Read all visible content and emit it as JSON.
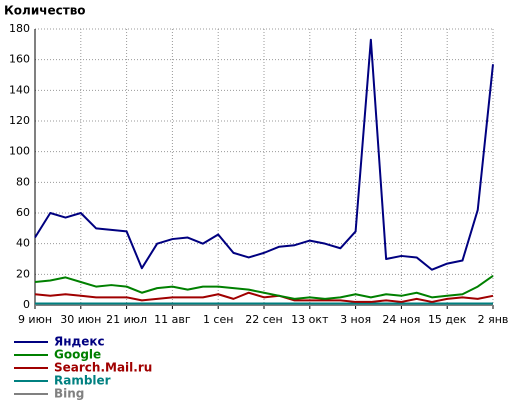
{
  "chart_data": {
    "type": "line",
    "title": "Количество",
    "categories": [
      "9 июн",
      null,
      null,
      "30 июн",
      null,
      null,
      "21 июл",
      null,
      null,
      "11 авг",
      null,
      null,
      "1 сен",
      null,
      null,
      "22 сен",
      null,
      null,
      "13 окт",
      null,
      null,
      "3 ноя",
      null,
      null,
      "24 ноя",
      null,
      null,
      "15 дек",
      null,
      null,
      "2 янв"
    ],
    "series": [
      {
        "name": "Яндекс",
        "color": "#000080",
        "values": [
          44,
          60,
          57,
          60,
          50,
          49,
          48,
          24,
          40,
          43,
          44,
          40,
          46,
          34,
          31,
          34,
          38,
          39,
          42,
          40,
          37,
          48,
          173,
          30,
          32,
          31,
          23,
          27,
          29,
          62,
          157
        ]
      },
      {
        "name": "Google",
        "color": "#008000",
        "values": [
          15,
          16,
          18,
          15,
          12,
          13,
          12,
          8,
          11,
          12,
          10,
          12,
          12,
          11,
          10,
          8,
          6,
          4,
          5,
          4,
          5,
          7,
          5,
          7,
          6,
          8,
          5,
          6,
          7,
          12,
          19
        ]
      },
      {
        "name": "Search.Mail.ru",
        "color": "#a00000",
        "values": [
          7,
          6,
          7,
          6,
          5,
          5,
          5,
          3,
          4,
          5,
          5,
          5,
          7,
          4,
          8,
          5,
          6,
          3,
          3,
          3,
          3,
          2,
          2,
          3,
          2,
          4,
          2,
          4,
          5,
          4,
          6
        ]
      },
      {
        "name": "Rambler",
        "color": "#008080",
        "values": [
          1,
          1,
          1,
          1,
          1,
          1,
          1,
          1,
          1,
          1,
          1,
          1,
          1,
          1,
          1,
          1,
          1,
          1,
          1,
          1,
          1,
          1,
          1,
          1,
          1,
          1,
          1,
          1,
          1,
          1,
          1
        ]
      },
      {
        "name": "Bing",
        "color": "#808080",
        "values": [
          0,
          0,
          0,
          0,
          0,
          0,
          0,
          0,
          0,
          0,
          0,
          0,
          0,
          0,
          0,
          0,
          0,
          0,
          0,
          0,
          0,
          0,
          0,
          0,
          0,
          0,
          0,
          0,
          0,
          0,
          0
        ]
      }
    ],
    "ylim": [
      0,
      180
    ],
    "yticks": [
      0,
      20,
      40,
      60,
      80,
      100,
      120,
      140,
      160,
      180
    ],
    "grid": true
  }
}
